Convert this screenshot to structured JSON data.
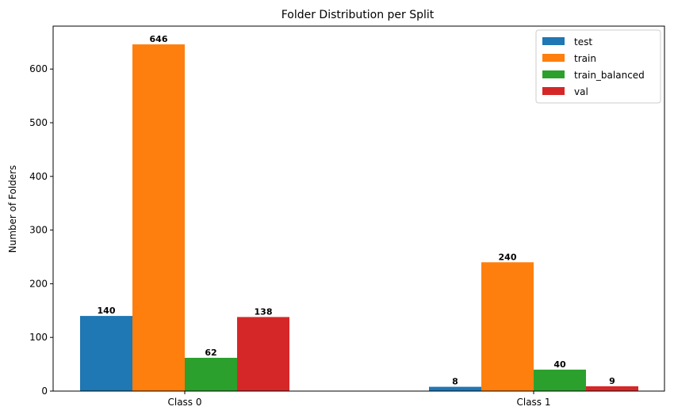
{
  "chart_data": {
    "type": "bar",
    "title": "Folder Distribution per Split",
    "xlabel": "",
    "ylabel": "Number of Folders",
    "categories": [
      "Class 0",
      "Class 1"
    ],
    "series": [
      {
        "name": "test",
        "color": "#1f77b4",
        "values": [
          140,
          8
        ]
      },
      {
        "name": "train",
        "color": "#ff7f0e",
        "values": [
          646,
          240
        ]
      },
      {
        "name": "train_balanced",
        "color": "#2ca02c",
        "values": [
          62,
          40
        ]
      },
      {
        "name": "val",
        "color": "#d62728",
        "values": [
          138,
          9
        ]
      }
    ],
    "ylim": [
      0,
      680
    ],
    "yticks": [
      0,
      100,
      200,
      300,
      400,
      500,
      600
    ],
    "legend_position": "top-right",
    "grid": false
  }
}
